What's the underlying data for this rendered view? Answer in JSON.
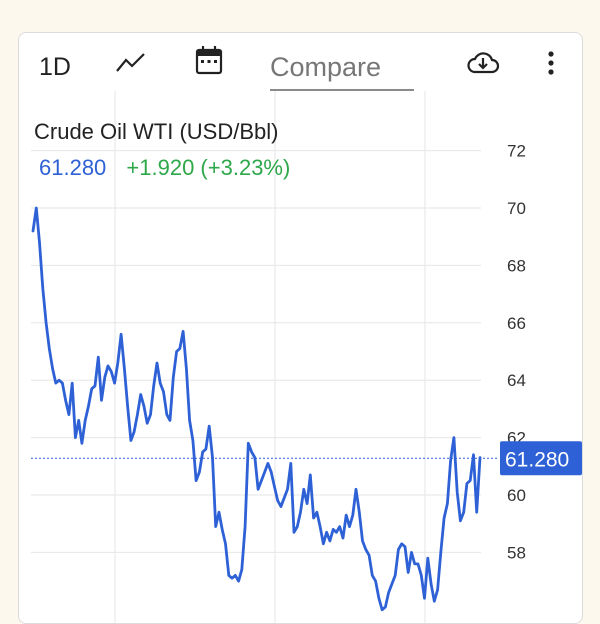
{
  "toolbar": {
    "range_label": "1D",
    "chart_type_icon": "line-chart-icon",
    "calendar_icon": "calendar-icon",
    "compare_placeholder": "Compare",
    "download_icon": "cloud-download-icon",
    "more_icon": "more-vertical-icon"
  },
  "instrument": {
    "title": "Crude Oil WTI (USD/Bbl)",
    "price": "61.280",
    "change": "+1.920 (+3.23%)"
  },
  "colors": {
    "price": "#2e61d6",
    "change_positive": "#2ea84a",
    "line": "#2e61d6",
    "grid": "#e6e6e6"
  },
  "price_tag": "61.280",
  "chart_data": {
    "type": "line",
    "y_ticks": [
      "72",
      "70",
      "68",
      "66",
      "64",
      "62",
      "60",
      "58"
    ],
    "ylim": [
      56,
      73
    ],
    "grid": true,
    "reference_line": 61.28,
    "series": [
      {
        "values": [
          69.2,
          70,
          68.8,
          67.2,
          66,
          65.1,
          64.4,
          63.9,
          64,
          63.9,
          63.3,
          62.8,
          63.9,
          62,
          62.6,
          61.8,
          62.6,
          63.1,
          63.7,
          63.8,
          64.8,
          63.3,
          64.1,
          64.5,
          64.3,
          63.9,
          64.6,
          65.6,
          64.4,
          63.1,
          61.9,
          62.2,
          62.8,
          63.5,
          63.1,
          62.5,
          62.8,
          63.8,
          64.6,
          63.9,
          63.6,
          62.8,
          62.6,
          64.1,
          65,
          65.1,
          65.7,
          64.4,
          62.6,
          61.9,
          60.5,
          60.8,
          61.5,
          61.6,
          62.4,
          61.3,
          58.9,
          59.4,
          58.8,
          58.3,
          57.2,
          57.1,
          57.2,
          57,
          57.4,
          58.9,
          61.8,
          61.5,
          61.3,
          60.2,
          60.5,
          60.8,
          61.1,
          60.8,
          60.3,
          59.8,
          59.6,
          59.9,
          60.2,
          61.1,
          58.7,
          58.9,
          59.4,
          60.2,
          59.7,
          60.7,
          59.2,
          59.4,
          58.9,
          58.3,
          58.7,
          58.4,
          58.8,
          58.7,
          58.9,
          58.5,
          59.3,
          58.9,
          59.3,
          60.2,
          59.4,
          58.4,
          58.1,
          57.9,
          57.2,
          57,
          56.4,
          56,
          56.1,
          56.6,
          56.9,
          57.2,
          58.1,
          58.3,
          58.2,
          57.3,
          58,
          57.6,
          57.6,
          57.2,
          56.4,
          57.8,
          56.9,
          56.3,
          56.7,
          58,
          59.2,
          59.7,
          61.2,
          62,
          60.1,
          59.1,
          59.4,
          60.4,
          60.5,
          61.4,
          59.4,
          61.3
        ]
      }
    ]
  }
}
